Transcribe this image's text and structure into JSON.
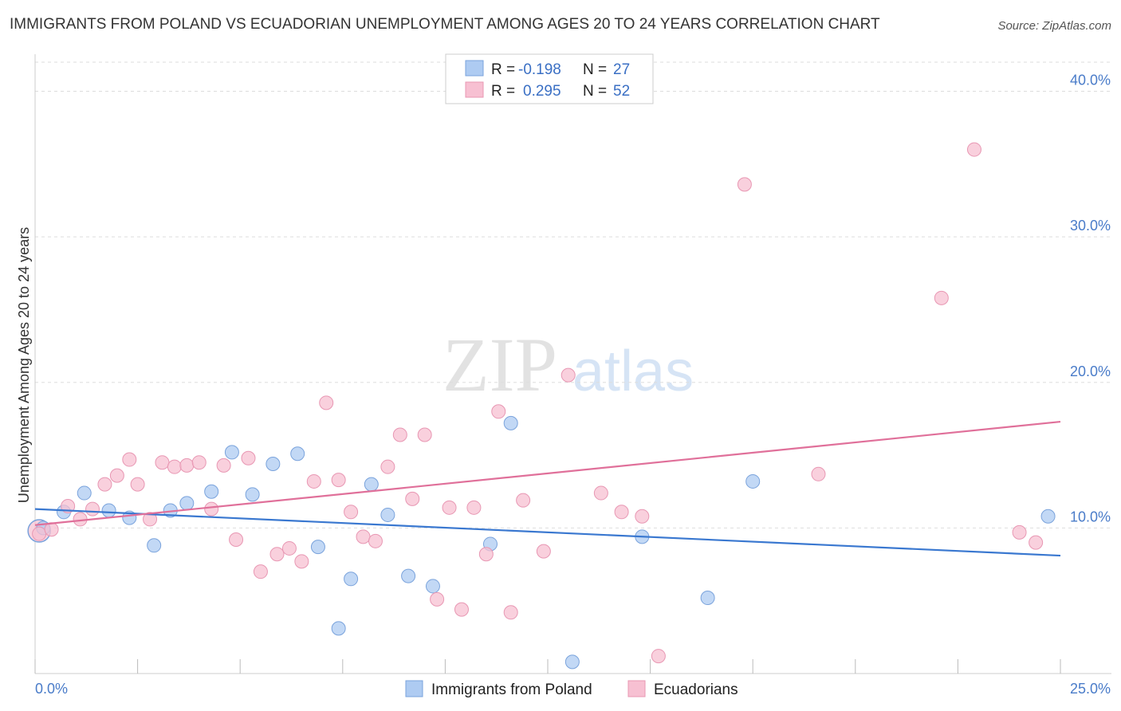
{
  "title": "IMMIGRANTS FROM POLAND VS ECUADORIAN UNEMPLOYMENT AMONG AGES 20 TO 24 YEARS CORRELATION CHART",
  "source": "Source: ZipAtlas.com",
  "watermark": {
    "zip": "ZIP",
    "atlas": "atlas"
  },
  "colors": {
    "poland_fill": "#aecbf2",
    "poland_stroke": "#7aa3dc",
    "poland_line": "#3a78d0",
    "ecuador_fill": "#f7c0d2",
    "ecuador_stroke": "#e897b3",
    "ecuador_line": "#e0709a",
    "grid": "#dddddd",
    "tick_text": "#4a7cc9"
  },
  "legend": {
    "rows": [
      {
        "r_label": "R =",
        "r_value": "-0.198",
        "n_label": "N =",
        "n_value": "27"
      },
      {
        "r_label": "R =",
        "r_value": "0.295",
        "n_label": "N =",
        "n_value": "52"
      }
    ]
  },
  "bottom_legend": [
    "Immigrants from Poland",
    "Ecuadorians"
  ],
  "chart_data": {
    "type": "scatter",
    "title": "IMMIGRANTS FROM POLAND VS ECUADORIAN UNEMPLOYMENT AMONG AGES 20 TO 24 YEARS CORRELATION CHART",
    "xlabel": "",
    "ylabel": "Unemployment Among Ages 20 to 24 years",
    "xlim": [
      0,
      25
    ],
    "ylim": [
      0,
      42
    ],
    "x_tick_labels": [
      "0.0%",
      "25.0%"
    ],
    "y_ticks": [
      10,
      20,
      30,
      40
    ],
    "y_tick_labels": [
      "10.0%",
      "20.0%",
      "30.0%",
      "40.0%"
    ],
    "grid": "horizontal dashed",
    "legend_position": "top-center",
    "series": [
      {
        "name": "Immigrants from Poland",
        "r": -0.198,
        "n": 27,
        "trend": [
          [
            0,
            11.3
          ],
          [
            25,
            8.1
          ]
        ],
        "points": [
          [
            0.2,
            10.0
          ],
          [
            0.7,
            11.1
          ],
          [
            1.2,
            12.4
          ],
          [
            1.8,
            11.2
          ],
          [
            2.3,
            10.7
          ],
          [
            2.9,
            8.8
          ],
          [
            3.3,
            11.2
          ],
          [
            3.7,
            11.7
          ],
          [
            4.3,
            12.5
          ],
          [
            4.8,
            15.2
          ],
          [
            5.3,
            12.3
          ],
          [
            5.8,
            14.4
          ],
          [
            6.4,
            15.1
          ],
          [
            6.9,
            8.7
          ],
          [
            7.4,
            3.1
          ],
          [
            7.7,
            6.5
          ],
          [
            8.2,
            13.0
          ],
          [
            8.6,
            10.9
          ],
          [
            9.1,
            6.7
          ],
          [
            9.7,
            6.0
          ],
          [
            11.1,
            8.9
          ],
          [
            11.6,
            17.2
          ],
          [
            13.1,
            0.8
          ],
          [
            14.8,
            9.4
          ],
          [
            16.4,
            5.2
          ],
          [
            17.5,
            13.2
          ],
          [
            24.7,
            10.8
          ]
        ]
      },
      {
        "name": "Ecuadorians",
        "r": 0.295,
        "n": 52,
        "trend": [
          [
            0,
            10.2
          ],
          [
            25,
            17.3
          ]
        ],
        "points": [
          [
            0.1,
            9.6
          ],
          [
            0.4,
            9.9
          ],
          [
            0.8,
            11.5
          ],
          [
            1.1,
            10.6
          ],
          [
            1.4,
            11.3
          ],
          [
            1.7,
            13.0
          ],
          [
            2.0,
            13.6
          ],
          [
            2.3,
            14.7
          ],
          [
            2.5,
            13.0
          ],
          [
            2.8,
            10.6
          ],
          [
            3.1,
            14.5
          ],
          [
            3.4,
            14.2
          ],
          [
            3.7,
            14.3
          ],
          [
            4.0,
            14.5
          ],
          [
            4.3,
            11.3
          ],
          [
            4.6,
            14.3
          ],
          [
            4.9,
            9.2
          ],
          [
            5.2,
            14.8
          ],
          [
            5.5,
            7.0
          ],
          [
            5.9,
            8.2
          ],
          [
            6.2,
            8.6
          ],
          [
            6.5,
            7.7
          ],
          [
            6.8,
            13.2
          ],
          [
            7.1,
            18.6
          ],
          [
            7.4,
            13.3
          ],
          [
            7.7,
            11.1
          ],
          [
            8.0,
            9.4
          ],
          [
            8.3,
            9.1
          ],
          [
            8.6,
            14.2
          ],
          [
            8.9,
            16.4
          ],
          [
            9.2,
            12.0
          ],
          [
            9.5,
            16.4
          ],
          [
            9.8,
            5.1
          ],
          [
            10.1,
            11.4
          ],
          [
            10.4,
            4.4
          ],
          [
            10.7,
            11.4
          ],
          [
            11.0,
            8.2
          ],
          [
            11.3,
            18.0
          ],
          [
            11.6,
            4.2
          ],
          [
            11.9,
            11.9
          ],
          [
            12.4,
            8.4
          ],
          [
            13.0,
            20.5
          ],
          [
            13.8,
            12.4
          ],
          [
            14.3,
            11.1
          ],
          [
            14.8,
            10.8
          ],
          [
            15.2,
            1.2
          ],
          [
            17.3,
            33.6
          ],
          [
            19.1,
            13.7
          ],
          [
            22.1,
            25.8
          ],
          [
            22.9,
            36.0
          ],
          [
            24.0,
            9.7
          ],
          [
            24.4,
            9.0
          ]
        ]
      }
    ]
  }
}
